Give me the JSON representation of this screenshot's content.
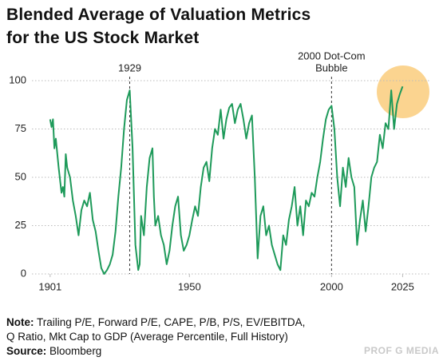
{
  "chart_data": {
    "type": "line",
    "title": [
      "Blended Average of Valuation Metrics",
      "for the US Stock Market"
    ],
    "note_label": "Note:",
    "note": [
      "Trailing P/E, Forward P/E, CAPE, P/B, P/S, EV/EBITDA,",
      "Q Ratio, Mkt Cap to GDP (Average Percentile, Full History)"
    ],
    "source_label": "Source:",
    "source": "Bloomberg",
    "brand": "PROF G MEDIA",
    "annotations": [
      {
        "lines": [
          "1929"
        ],
        "x": 1929
      },
      {
        "lines": [
          "2000 Dot-Com",
          "Bubble"
        ],
        "x": 2000
      }
    ],
    "xlim": [
      1896,
      2035
    ],
    "xticks": [
      1901,
      1950,
      2000,
      2025
    ],
    "ylim": [
      0,
      100
    ],
    "yticks": [
      0,
      25,
      50,
      75,
      100
    ],
    "grid": true,
    "series": [
      {
        "color": "#1e9a5a",
        "x": [
          1901,
          1901.5,
          1902,
          1902.5,
          1903,
          1904,
          1905,
          1905.5,
          1906,
          1906.5,
          1907,
          1908,
          1909,
          1910,
          1911,
          1912,
          1913,
          1914,
          1915,
          1916,
          1917,
          1918,
          1919,
          1920,
          1921,
          1922,
          1923,
          1924,
          1925,
          1926,
          1927,
          1928,
          1929,
          1929.5,
          1930,
          1930.5,
          1931,
          1932,
          1932.5,
          1933,
          1934,
          1935,
          1936,
          1937,
          1937.5,
          1938,
          1939,
          1940,
          1941,
          1942,
          1943,
          1944,
          1945,
          1946,
          1947,
          1948,
          1949,
          1950,
          1951,
          1952,
          1953,
          1954,
          1955,
          1956,
          1957,
          1958,
          1959,
          1960,
          1961,
          1962,
          1963,
          1964,
          1965,
          1966,
          1967,
          1968,
          1969,
          1970,
          1971,
          1972,
          1973,
          1974,
          1975,
          1976,
          1977,
          1978,
          1979,
          1980,
          1981,
          1982,
          1983,
          1984,
          1985,
          1986,
          1987,
          1988,
          1989,
          1990,
          1991,
          1992,
          1993,
          1994,
          1995,
          1996,
          1997,
          1998,
          1999,
          2000,
          2001,
          2002,
          2003,
          2004,
          2005,
          2006,
          2007,
          2008,
          2009,
          2010,
          2011,
          2012,
          2013,
          2014,
          2015,
          2016,
          2017,
          2018,
          2019,
          2020,
          2021,
          2022,
          2023,
          2024,
          2025
        ],
        "values": [
          80,
          76,
          80,
          65,
          70,
          55,
          42,
          45,
          40,
          62,
          55,
          50,
          38,
          30,
          20,
          33,
          38,
          35,
          42,
          28,
          22,
          12,
          3,
          0,
          2,
          5,
          10,
          22,
          40,
          55,
          75,
          90,
          95,
          80,
          65,
          40,
          15,
          2,
          5,
          30,
          20,
          45,
          60,
          65,
          40,
          25,
          30,
          20,
          15,
          5,
          12,
          25,
          35,
          40,
          20,
          12,
          15,
          20,
          28,
          35,
          30,
          45,
          55,
          58,
          48,
          65,
          75,
          72,
          85,
          70,
          80,
          86,
          88,
          78,
          85,
          88,
          80,
          70,
          78,
          82,
          50,
          8,
          30,
          35,
          20,
          25,
          15,
          10,
          5,
          2,
          20,
          15,
          28,
          35,
          45,
          25,
          35,
          20,
          38,
          35,
          42,
          40,
          50,
          58,
          70,
          80,
          85,
          87,
          75,
          50,
          35,
          55,
          45,
          60,
          50,
          45,
          15,
          28,
          38,
          22,
          35,
          50,
          55,
          58,
          72,
          65,
          78,
          75,
          95,
          75,
          88,
          93,
          97
        ]
      }
    ]
  }
}
